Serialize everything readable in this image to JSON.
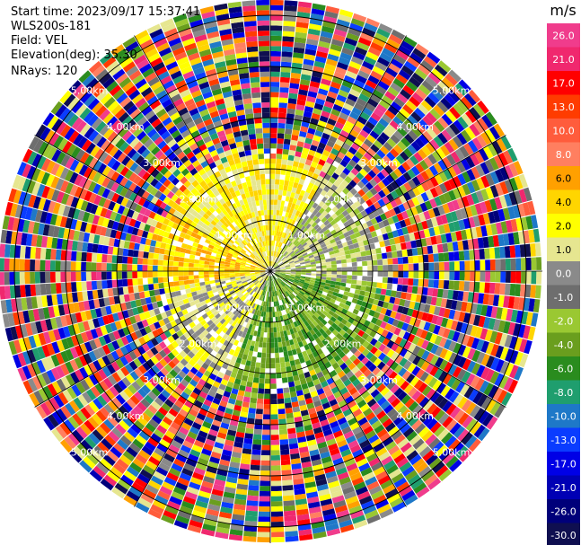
{
  "header": {
    "start_time": "Start time: 2023/09/17 15:37:41",
    "instrument": "WLS200s-181",
    "field": "Field: VEL",
    "elevation": "Elevation(deg): 35.30",
    "nrays": "NRays: 120"
  },
  "chart_data": {
    "type": "heatmap",
    "projection": "polar-ppi",
    "field": "VEL",
    "rays": 120,
    "range_rings": [
      {
        "label": "1.00km",
        "range": 1
      },
      {
        "label": "2.00km",
        "range": 2
      },
      {
        "label": "3.00km",
        "range": 3
      },
      {
        "label": "4.00km",
        "range": 4
      },
      {
        "label": "5.00km",
        "range": 5
      }
    ],
    "range_max": 5.3,
    "spokes_deg": [
      0,
      30,
      60,
      90,
      120,
      150,
      180,
      210,
      240,
      270,
      300,
      330
    ],
    "colorbar": {
      "unit": "m/s",
      "ticks": [
        "26.0",
        "21.0",
        "17.0",
        "13.0",
        "10.0",
        "8.0",
        "6.0",
        "4.0",
        "2.0",
        "1.0",
        "0.0",
        "-1.0",
        "-2.0",
        "-4.0",
        "-6.0",
        "-8.0",
        "-10.0",
        "-13.0",
        "-17.0",
        "-21.0",
        "-26.0",
        "-30.0"
      ],
      "colors": [
        "#f03c8c",
        "#f0286e",
        "#ff0000",
        "#ff3c00",
        "#ff5c3c",
        "#ff7f60",
        "#ffa000",
        "#ffd500",
        "#ffff00",
        "#e6e690",
        "#8a8a8a",
        "#6e6e6e",
        "#9ac832",
        "#6a9e1e",
        "#2a8c1e",
        "#1f9e6e",
        "#1e78c8",
        "#0a3cff",
        "#0000e6",
        "#0000b4",
        "#00007a",
        "#0f0f50"
      ]
    },
    "field_pattern": {
      "inner_radius_km": 2.3,
      "inner_azimuth_colors": [
        {
          "from": 300,
          "to": 30,
          "colors": [
            "#ffd500",
            "#ffff00",
            "#e6e690"
          ]
        },
        {
          "from": 30,
          "to": 100,
          "colors": [
            "#8a8a8a",
            "#e6e690",
            "#9ac832"
          ]
        },
        {
          "from": 100,
          "to": 200,
          "colors": [
            "#6a9e1e",
            "#2a8c1e",
            "#9ac832"
          ]
        },
        {
          "from": 200,
          "to": 260,
          "colors": [
            "#8a8a8a",
            "#ffff00",
            "#e6e690"
          ]
        },
        {
          "from": 260,
          "to": 300,
          "colors": [
            "#ffa000",
            "#ffd500",
            "#ffff00"
          ]
        }
      ]
    }
  }
}
